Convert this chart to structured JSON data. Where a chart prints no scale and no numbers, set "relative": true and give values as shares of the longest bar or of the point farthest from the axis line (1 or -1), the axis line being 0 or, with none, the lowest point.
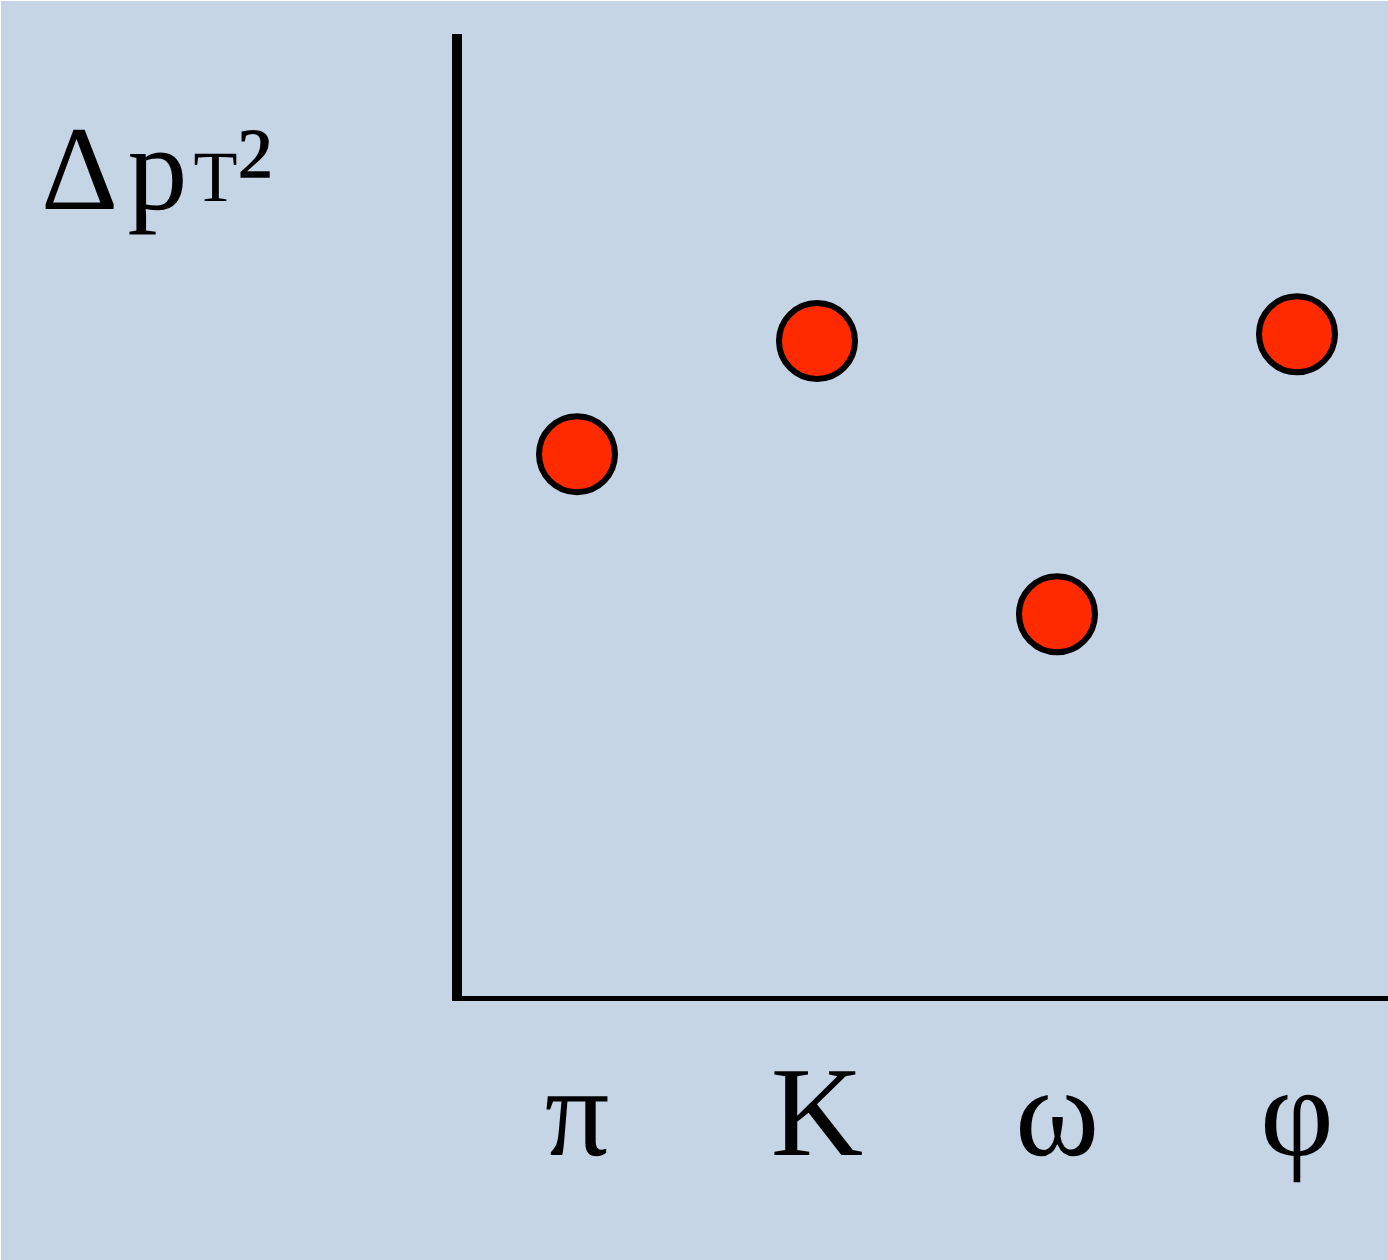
{
  "chart_data": {
    "type": "scatter",
    "ylabel": "Δp$_{T}$²",
    "categories": [
      "π",
      "K",
      "ω",
      "φ"
    ],
    "series": [
      {
        "color": "#ff2a00",
        "values": [
          0.82,
          0.99,
          0.58,
          1.0
        ]
      }
    ],
    "relative": true,
    "marker": "circle",
    "grid": false
  }
}
